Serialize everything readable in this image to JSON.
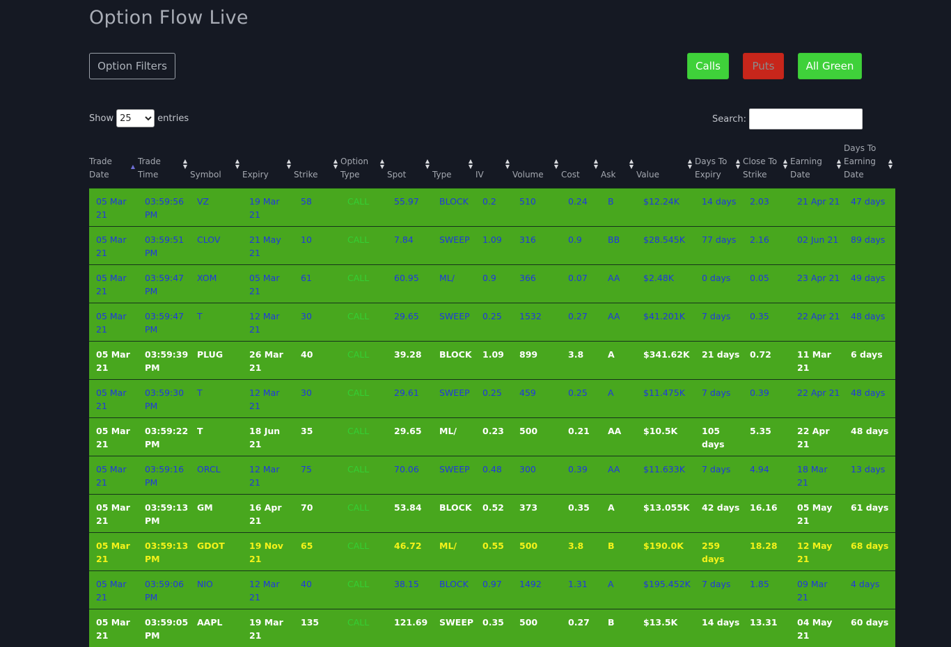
{
  "title": "Option Flow Live",
  "buttons": {
    "option_filters": "Option Filters",
    "calls": "Calls",
    "puts": "Puts",
    "all_green": "All Green"
  },
  "length": {
    "prefix": "Show",
    "value": "25",
    "suffix": "entries"
  },
  "search": {
    "label": "Search:",
    "value": ""
  },
  "columns": [
    {
      "key": "trade_date",
      "label": "Trade Date",
      "sort": "asc"
    },
    {
      "key": "trade_time",
      "label": "Trade Time",
      "sort": "none"
    },
    {
      "key": "symbol",
      "label": "Symbol",
      "sort": "none"
    },
    {
      "key": "expiry",
      "label": "Expiry",
      "sort": "none"
    },
    {
      "key": "strike",
      "label": "Strike",
      "sort": "none"
    },
    {
      "key": "option_type",
      "label": "Option Type",
      "sort": "none"
    },
    {
      "key": "spot",
      "label": "Spot",
      "sort": "none"
    },
    {
      "key": "type",
      "label": "Type",
      "sort": "none"
    },
    {
      "key": "iv",
      "label": "IV",
      "sort": "none"
    },
    {
      "key": "volume",
      "label": "Volume",
      "sort": "none"
    },
    {
      "key": "cost",
      "label": "Cost",
      "sort": "none"
    },
    {
      "key": "ask",
      "label": "Ask",
      "sort": "none"
    },
    {
      "key": "value",
      "label": "Value",
      "sort": "none"
    },
    {
      "key": "days_to_expiry",
      "label": "Days To Expiry",
      "sort": "none"
    },
    {
      "key": "close_to_strike",
      "label": "Close To Strike",
      "sort": "none"
    },
    {
      "key": "earning_date",
      "label": "Earning Date",
      "sort": "none"
    },
    {
      "key": "days_to_earning",
      "label": "Days To Earning Date",
      "sort": "none"
    }
  ],
  "rows": [
    {
      "style": "blue",
      "cells": [
        "05 Mar 21",
        "03:59:56 PM",
        "VZ",
        "19 Mar 21",
        "58",
        "CALL",
        "55.97",
        "BLOCK",
        "0.2",
        "510",
        "0.24",
        "B",
        "$12.24K",
        "14 days",
        "2.03",
        "21 Apr 21",
        "47 days"
      ]
    },
    {
      "style": "blue",
      "cells": [
        "05 Mar 21",
        "03:59:51 PM",
        "CLOV",
        "21 May 21",
        "10",
        "CALL",
        "7.84",
        "SWEEP",
        "1.09",
        "316",
        "0.9",
        "BB",
        "$28.545K",
        "77 days",
        "2.16",
        "02 Jun 21",
        "89 days"
      ]
    },
    {
      "style": "blue",
      "cells": [
        "05 Mar 21",
        "03:59:47 PM",
        "XOM",
        "05 Mar 21",
        "61",
        "CALL",
        "60.95",
        "ML/",
        "0.9",
        "366",
        "0.07",
        "AA",
        "$2.48K",
        "0 days",
        "0.05",
        "23 Apr 21",
        "49 days"
      ]
    },
    {
      "style": "blue",
      "cells": [
        "05 Mar 21",
        "03:59:47 PM",
        "T",
        "12 Mar 21",
        "30",
        "CALL",
        "29.65",
        "SWEEP",
        "0.25",
        "1532",
        "0.27",
        "AA",
        "$41.201K",
        "7 days",
        "0.35",
        "22 Apr 21",
        "48 days"
      ]
    },
    {
      "style": "white",
      "cells": [
        "05 Mar 21",
        "03:59:39 PM",
        "PLUG",
        "26 Mar 21",
        "40",
        "CALL",
        "39.28",
        "BLOCK",
        "1.09",
        "899",
        "3.8",
        "A",
        "$341.62K",
        "21 days",
        "0.72",
        "11 Mar 21",
        "6 days"
      ]
    },
    {
      "style": "blue",
      "cells": [
        "05 Mar 21",
        "03:59:30 PM",
        "T",
        "12 Mar 21",
        "30",
        "CALL",
        "29.61",
        "SWEEP",
        "0.25",
        "459",
        "0.25",
        "A",
        "$11.475K",
        "7 days",
        "0.39",
        "22 Apr 21",
        "48 days"
      ]
    },
    {
      "style": "white",
      "cells": [
        "05 Mar 21",
        "03:59:22 PM",
        "T",
        "18 Jun 21",
        "35",
        "CALL",
        "29.65",
        "ML/",
        "0.23",
        "500",
        "0.21",
        "AA",
        "$10.5K",
        "105 days",
        "5.35",
        "22 Apr 21",
        "48 days"
      ]
    },
    {
      "style": "blue",
      "cells": [
        "05 Mar 21",
        "03:59:16 PM",
        "ORCL",
        "12 Mar 21",
        "75",
        "CALL",
        "70.06",
        "SWEEP",
        "0.48",
        "300",
        "0.39",
        "AA",
        "$11.633K",
        "7 days",
        "4.94",
        "18 Mar 21",
        "13 days"
      ]
    },
    {
      "style": "white",
      "cells": [
        "05 Mar 21",
        "03:59:13 PM",
        "GM",
        "16 Apr 21",
        "70",
        "CALL",
        "53.84",
        "BLOCK",
        "0.52",
        "373",
        "0.35",
        "A",
        "$13.055K",
        "42 days",
        "16.16",
        "05 May 21",
        "61 days"
      ]
    },
    {
      "style": "yellow",
      "cells": [
        "05 Mar 21",
        "03:59:13 PM",
        "GDOT",
        "19 Nov 21",
        "65",
        "CALL",
        "46.72",
        "ML/",
        "0.55",
        "500",
        "3.8",
        "B",
        "$190.0K",
        "259 days",
        "18.28",
        "12 May 21",
        "68 days"
      ]
    },
    {
      "style": "blue",
      "cells": [
        "05 Mar 21",
        "03:59:06 PM",
        "NIO",
        "12 Mar 21",
        "40",
        "CALL",
        "38.15",
        "BLOCK",
        "0.97",
        "1492",
        "1.31",
        "A",
        "$195.452K",
        "7 days",
        "1.85",
        "09 Mar 21",
        "4 days"
      ]
    },
    {
      "style": "white",
      "cells": [
        "05 Mar 21",
        "03:59:05 PM",
        "AAPL",
        "19 Mar 21",
        "135",
        "CALL",
        "121.69",
        "SWEEP",
        "0.35",
        "500",
        "0.27",
        "B",
        "$13.5K",
        "14 days",
        "13.31",
        "04 May 21",
        "60 days"
      ]
    }
  ]
}
